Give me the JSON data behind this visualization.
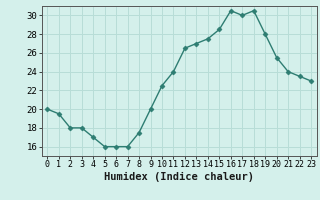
{
  "x": [
    0,
    1,
    2,
    3,
    4,
    5,
    6,
    7,
    8,
    9,
    10,
    11,
    12,
    13,
    14,
    15,
    16,
    17,
    18,
    19,
    20,
    21,
    22,
    23
  ],
  "y": [
    20,
    19.5,
    18,
    18,
    17,
    16,
    16,
    16,
    17.5,
    20,
    22.5,
    24,
    26.5,
    27,
    27.5,
    28.5,
    30.5,
    30,
    30.5,
    28,
    25.5,
    24,
    23.5,
    23
  ],
  "line_color": "#2e7d72",
  "marker": "D",
  "marker_size": 2.5,
  "bg_color": "#d4f0eb",
  "grid_color": "#b8ddd7",
  "xlabel": "Humidex (Indice chaleur)",
  "xlim": [
    -0.5,
    23.5
  ],
  "ylim": [
    15.0,
    31.0
  ],
  "yticks": [
    16,
    18,
    20,
    22,
    24,
    26,
    28,
    30
  ],
  "xticks": [
    0,
    1,
    2,
    3,
    4,
    5,
    6,
    7,
    8,
    9,
    10,
    11,
    12,
    13,
    14,
    15,
    16,
    17,
    18,
    19,
    20,
    21,
    22,
    23
  ],
  "xlabel_fontsize": 7.5,
  "tick_fontsize": 6.0,
  "linewidth": 1.0
}
